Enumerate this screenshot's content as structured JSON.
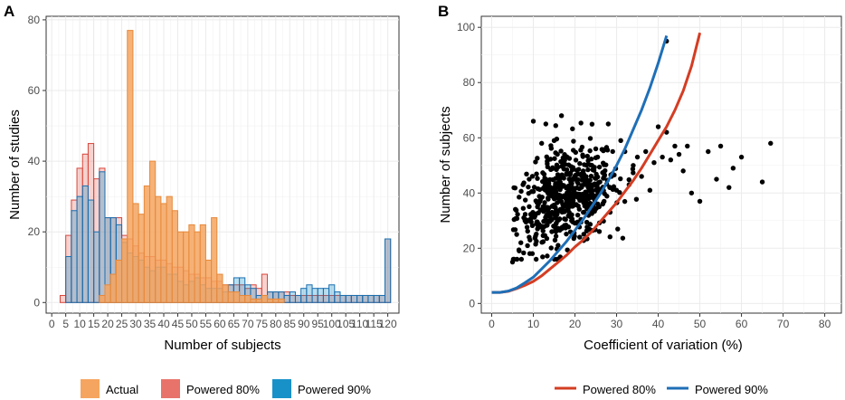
{
  "colors": {
    "actual": "#f5a55f",
    "actual_stroke": "#e7893b",
    "powered80": "#e8736a",
    "powered80_fill": "rgba(232,115,106,0.32)",
    "powered80_stroke": "#d7453a",
    "powered90": "#1891c9",
    "powered90_fill": "rgba(24,145,201,0.30)",
    "powered90_stroke": "#1a6fb0",
    "scatter": "#000000",
    "line80": "#d43d23",
    "line90": "#1e6fb7"
  },
  "chart_data": [
    {
      "panel": "A",
      "type": "bar",
      "subtype": "overlaid histogram",
      "xlabel": "Number of subjects",
      "ylabel": "Number of studies",
      "xlim": [
        -2,
        124
      ],
      "ylim": [
        -3,
        81
      ],
      "xticks": [
        0,
        5,
        10,
        15,
        20,
        25,
        30,
        35,
        40,
        45,
        50,
        55,
        60,
        65,
        70,
        75,
        80,
        85,
        90,
        95,
        100,
        105,
        110,
        115,
        120
      ],
      "yticks": [
        0,
        20,
        40,
        60,
        80
      ],
      "bin_width": 2,
      "bin_starts": [
        3,
        5,
        7,
        9,
        11,
        13,
        15,
        17,
        19,
        21,
        23,
        25,
        27,
        29,
        31,
        33,
        35,
        37,
        39,
        41,
        43,
        45,
        47,
        49,
        51,
        53,
        55,
        57,
        59,
        61,
        63,
        65,
        67,
        69,
        71,
        73,
        75,
        77,
        79,
        81,
        83,
        85,
        87,
        89,
        91,
        93,
        95,
        97,
        99,
        101,
        103,
        105,
        107,
        109,
        111,
        113,
        115,
        117,
        119
      ],
      "series": [
        {
          "name": "Actual",
          "values": [
            0,
            0,
            0,
            0,
            0,
            0,
            0,
            2,
            5,
            8,
            12,
            18,
            77,
            28,
            25,
            33,
            40,
            30,
            28,
            30,
            26,
            20,
            20,
            22,
            20,
            22,
            12,
            24,
            8,
            5,
            3,
            3,
            2,
            2,
            1,
            1,
            2,
            1,
            1,
            1,
            0,
            0,
            0,
            0,
            0,
            0,
            0,
            0,
            0,
            0,
            0,
            0,
            0,
            0,
            0,
            0,
            0,
            0,
            0
          ]
        },
        {
          "name": "Powered 80%",
          "values": [
            2,
            19,
            29,
            38,
            42,
            45,
            35,
            38,
            24,
            24,
            24,
            19,
            18,
            16,
            14,
            13,
            13,
            12,
            12,
            11,
            10,
            10,
            9,
            8,
            8,
            7,
            7,
            6,
            6,
            5,
            5,
            5,
            5,
            4,
            5,
            4,
            8,
            3,
            3,
            3,
            3,
            2,
            2,
            2,
            2,
            2,
            2,
            2,
            2,
            2,
            2,
            2,
            2,
            2,
            2,
            2,
            2,
            2,
            18
          ]
        },
        {
          "name": "Powered 90%",
          "values": [
            0,
            13,
            26,
            30,
            33,
            29,
            20,
            37,
            24,
            24,
            22,
            17,
            14,
            13,
            12,
            10,
            9,
            10,
            10,
            8,
            8,
            6,
            5,
            6,
            7,
            5,
            4,
            4,
            4,
            3,
            5,
            7,
            7,
            5,
            4,
            2,
            2,
            3,
            3,
            3,
            2,
            3,
            2,
            4,
            5,
            4,
            4,
            4,
            5,
            3,
            2,
            2,
            2,
            2,
            2,
            2,
            2,
            2,
            18
          ]
        }
      ],
      "legend": [
        {
          "label": "Actual",
          "key": "actual"
        },
        {
          "label": "Powered 80%",
          "key": "powered80"
        },
        {
          "label": "Powered 90%",
          "key": "powered90"
        }
      ]
    },
    {
      "panel": "B",
      "type": "scatter",
      "xlabel": "Coefficient of variation (%)",
      "ylabel": "Number of subjects",
      "xlim": [
        -2.5,
        84
      ],
      "ylim": [
        -3.5,
        104
      ],
      "xticks": [
        0,
        10,
        20,
        30,
        40,
        50,
        60,
        70,
        80
      ],
      "yticks": [
        0,
        20,
        40,
        60,
        80,
        100
      ],
      "lines": [
        {
          "name": "Powered 80%",
          "key": "line80",
          "x": [
            0,
            2,
            4,
            6,
            8,
            10,
            12,
            14,
            16,
            18,
            20,
            22,
            24,
            26,
            28,
            30,
            32,
            34,
            36,
            38,
            40,
            42,
            44,
            46,
            48,
            50
          ],
          "y": [
            4,
            4,
            4.4,
            5.4,
            6.6,
            8,
            10,
            12.5,
            15,
            17.5,
            20.5,
            23,
            26,
            29.5,
            33,
            36.5,
            40.5,
            44.5,
            49,
            54,
            59,
            64,
            70,
            77,
            86,
            98
          ]
        },
        {
          "name": "Powered 90%",
          "key": "line90",
          "x": [
            0,
            2,
            4,
            6,
            8,
            10,
            12,
            14,
            16,
            18,
            20,
            22,
            24,
            26,
            28,
            30,
            32,
            34,
            36,
            38,
            40,
            42
          ],
          "y": [
            4,
            4,
            4.5,
            5.6,
            7.5,
            9.5,
            12.5,
            15.5,
            19,
            22.5,
            26.5,
            30.5,
            35,
            39.5,
            44.5,
            50,
            56,
            63,
            70,
            78,
            87,
            97
          ]
        }
      ],
      "points": {
        "n": 600,
        "x_mean": 18,
        "x_sd": 8,
        "y_mean": 38,
        "y_sd": 10,
        "x": [
          5,
          6,
          7,
          8,
          9,
          9,
          10,
          11,
          11,
          12,
          12,
          13,
          14,
          14,
          15,
          15,
          16,
          17,
          18,
          19,
          20,
          21,
          22,
          22,
          23,
          24,
          25,
          26,
          27,
          28,
          29,
          30,
          31,
          32,
          33,
          34,
          35,
          36,
          37,
          38,
          39,
          40,
          41,
          42,
          43,
          44,
          45,
          46,
          47,
          48,
          50,
          52,
          54,
          55,
          57,
          58,
          60,
          65,
          67,
          42
        ],
        "y": [
          15,
          25,
          22,
          30,
          24,
          45,
          66,
          35,
          27,
          28,
          58,
          65,
          30,
          40,
          35,
          59,
          42,
          50,
          36,
          44,
          46,
          38,
          33,
          48,
          35,
          40,
          56,
          44,
          37,
          65,
          47,
          41,
          59,
          55,
          43,
          50,
          53,
          46,
          55,
          41,
          51,
          64,
          53,
          62,
          52,
          57,
          54,
          48,
          57,
          40,
          37,
          55,
          45,
          57,
          42,
          49,
          53,
          44,
          58,
          95
        ]
      },
      "legend": [
        {
          "label": "Powered 80%",
          "key": "line80"
        },
        {
          "label": "Powered 90%",
          "key": "line90"
        }
      ]
    }
  ]
}
